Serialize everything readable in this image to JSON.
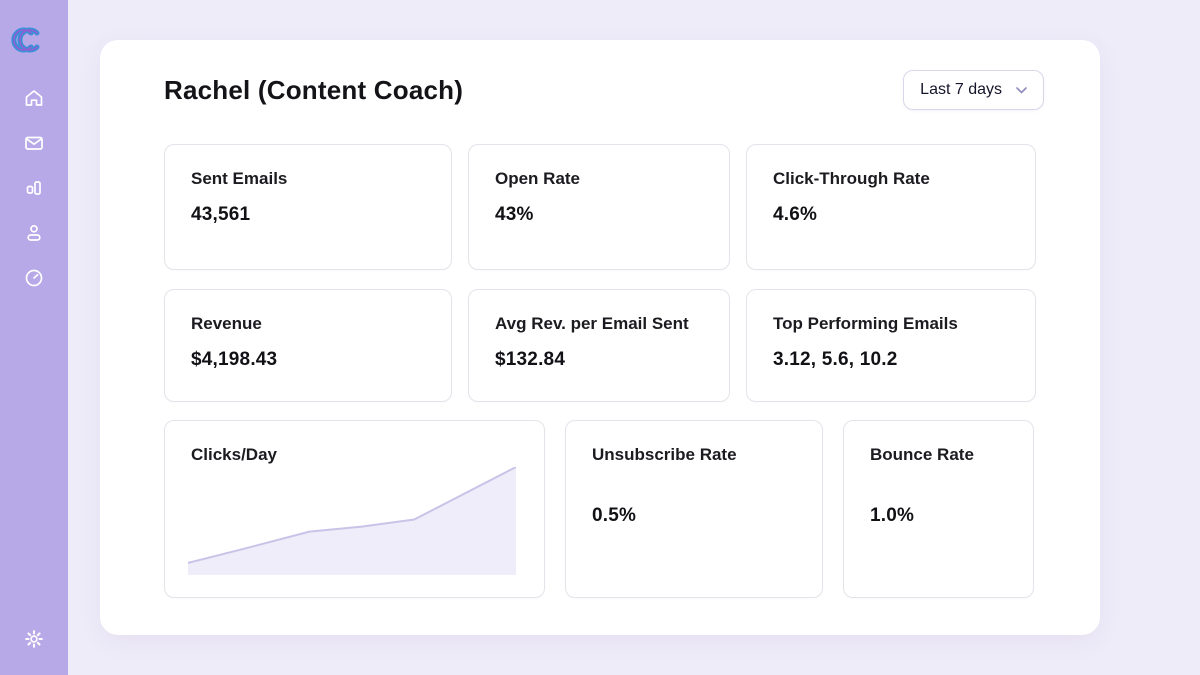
{
  "colors": {
    "sidebar_bg": "#b7a9e7",
    "page_bg": "#efecf9",
    "panel_bg": "#ffffff",
    "card_border": "#e4e3ea",
    "logo_blue": "#3a8fd9",
    "logo_purple": "#8a63d2",
    "chart_line": "#c9c3e8",
    "chart_fill": "#eeedf9"
  },
  "sidebar": {
    "logo_icon": "infinity-logo",
    "items": [
      {
        "icon": "home-icon"
      },
      {
        "icon": "mail-icon"
      },
      {
        "icon": "bar-chart-icon"
      },
      {
        "icon": "user-icon"
      },
      {
        "icon": "clock-icon"
      }
    ],
    "footer_icon": "gear-icon"
  },
  "header": {
    "title": "Rachel (Content Coach)",
    "range_selector": {
      "value": "Last 7 days",
      "icon": "chevron-down-icon"
    }
  },
  "cards": {
    "sent_emails": {
      "label": "Sent Emails",
      "value": "43,561"
    },
    "open_rate": {
      "label": "Open Rate",
      "value": "43%"
    },
    "click_through_rate": {
      "label": "Click-Through Rate",
      "value": "4.6%"
    },
    "revenue": {
      "label": "Revenue",
      "value": "$4,198.43"
    },
    "avg_rev_per_email": {
      "label": "Avg Rev. per Email Sent",
      "value": "$132.84"
    },
    "top_performing_emails": {
      "label": "Top Performing Emails",
      "value": "3.12, 5.6, 10.2"
    },
    "clicks_per_day": {
      "label": "Clicks/Day"
    },
    "unsubscribe_rate": {
      "label": "Unsubscribe Rate",
      "value": "0.5%"
    },
    "bounce_rate": {
      "label": "Bounce Rate",
      "value": "1.0%"
    }
  },
  "chart_data": {
    "type": "area",
    "title": "Clicks/Day",
    "x_pct": [
      0,
      17,
      37,
      53,
      69,
      100
    ],
    "values": [
      12,
      26,
      43,
      48,
      55,
      107
    ],
    "ylim": [
      0,
      107
    ],
    "xlabel": "",
    "ylabel": "",
    "grid": false,
    "axes_visible": false,
    "legend": false,
    "line_color": "#c9c3e8",
    "fill_color": "#eeedf9"
  }
}
